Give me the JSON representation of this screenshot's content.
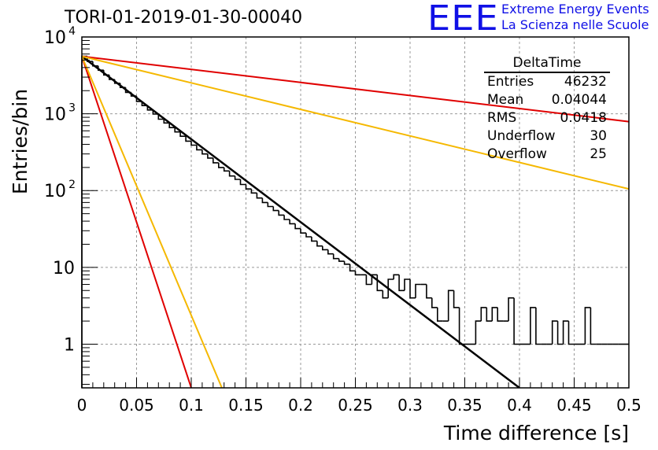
{
  "header": {
    "title": "TORI-01-2019-01-30-00040",
    "logo_text": "EEE",
    "logo_line1": "Extreme Energy Events",
    "logo_line2": "La Scienza nelle Scuole"
  },
  "stats_box": {
    "name": "DeltaTime",
    "rows": [
      {
        "label": "Entries",
        "value": "46232"
      },
      {
        "label": "Mean",
        "value": "0.04044"
      },
      {
        "label": "RMS",
        "value": "0.0418"
      },
      {
        "label": "Underflow",
        "value": "30"
      },
      {
        "label": "Overflow",
        "value": "25"
      }
    ]
  },
  "chart_data": {
    "type": "histogram",
    "title": "TORI-01-2019-01-30-00040",
    "xlabel": "Time difference [s]",
    "ylabel": "Entries/bin",
    "xlim": [
      0,
      0.5
    ],
    "ylim": [
      0.27,
      10000
    ],
    "yscale": "log",
    "grid": true,
    "x_ticks": [
      "0",
      "0.05",
      "0.1",
      "0.15",
      "0.2",
      "0.25",
      "0.3",
      "0.35",
      "0.4",
      "0.45",
      "0.5"
    ],
    "y_ticks": [
      {
        "value": 1,
        "label": "1"
      },
      {
        "value": 10,
        "label": "10"
      },
      {
        "value": 100,
        "label": "10",
        "exp": "2"
      },
      {
        "value": 1000,
        "label": "10",
        "exp": "3"
      },
      {
        "value": 10000,
        "label": "10",
        "exp": "4"
      }
    ],
    "histogram": {
      "bin_width": 0.005,
      "color": "#000000",
      "values": [
        5600,
        4800,
        4200,
        3700,
        3200,
        2800,
        2500,
        2200,
        1900,
        1700,
        1450,
        1280,
        1120,
        990,
        850,
        760,
        660,
        580,
        510,
        440,
        390,
        340,
        300,
        265,
        230,
        200,
        180,
        155,
        140,
        120,
        105,
        93,
        80,
        70,
        62,
        55,
        48,
        42,
        37,
        32,
        28,
        25,
        22,
        19,
        17,
        15,
        13,
        12,
        11,
        9,
        8,
        8,
        6,
        8,
        5,
        4,
        7,
        8,
        5,
        7,
        4,
        6,
        6,
        4,
        3,
        2,
        2,
        5,
        3,
        1,
        1,
        1,
        2,
        3,
        2,
        3,
        2,
        2,
        4,
        1,
        1,
        1,
        3,
        1,
        1,
        1,
        2,
        1,
        2,
        1,
        1,
        1,
        3,
        1,
        1,
        1,
        1,
        1,
        1,
        1
      ]
    },
    "series": [
      {
        "color": "#000000",
        "points": [
          [
            0,
            5600
          ],
          [
            0.4,
            0.27
          ]
        ]
      },
      {
        "color": "#e00000",
        "points": [
          [
            0,
            5600
          ],
          [
            0.5,
            790
          ]
        ]
      },
      {
        "color": "#f5b800",
        "points": [
          [
            0,
            5600
          ],
          [
            0.5,
            105
          ]
        ]
      },
      {
        "color": "#e00000",
        "points": [
          [
            0,
            5600
          ],
          [
            0.1,
            0.27
          ]
        ]
      },
      {
        "color": "#f5b800",
        "points": [
          [
            0,
            5600
          ],
          [
            0.128,
            0.27
          ]
        ]
      }
    ]
  }
}
